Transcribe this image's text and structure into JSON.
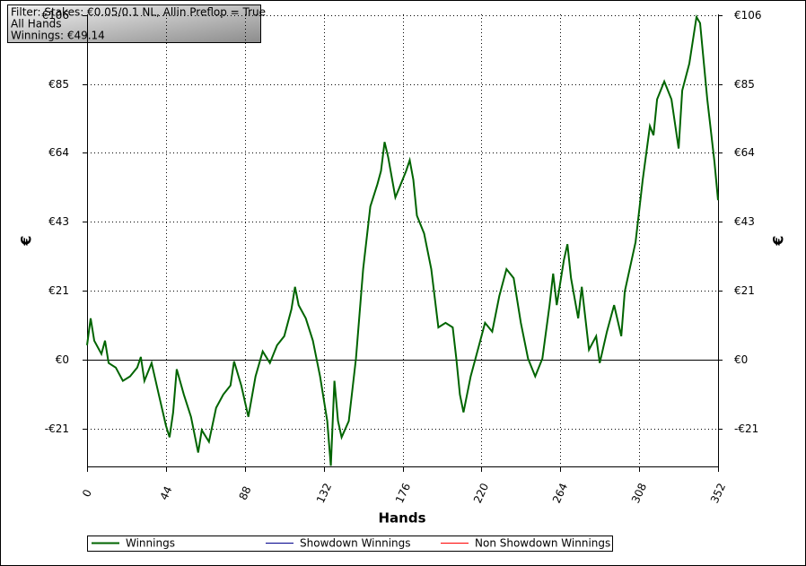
{
  "chart_data": {
    "type": "line",
    "info": [
      "Filter: Stakes: €0.05/0.1 NL, Allin Preflop = True",
      "All Hands",
      "Winnings: €49.14"
    ],
    "xlabel": "Hands",
    "ylabel": "€",
    "y2label": "€",
    "xlim": [
      0,
      352
    ],
    "xticks": [
      0,
      44,
      88,
      132,
      176,
      220,
      264,
      308,
      352
    ],
    "ylim": [
      -33,
      106.5
    ],
    "yticks": [
      {
        "value": -21.25,
        "label": "-€21"
      },
      {
        "value": 0,
        "label": "€0"
      },
      {
        "value": 21.25,
        "label": "€21"
      },
      {
        "value": 42.5,
        "label": "€43"
      },
      {
        "value": 63.75,
        "label": "€64"
      },
      {
        "value": 85,
        "label": "€85"
      },
      {
        "value": 106.25,
        "label": "€106"
      }
    ],
    "grid": true,
    "series": [
      {
        "name": "Winnings",
        "color": "#006400",
        "x": [
          0,
          2,
          4,
          8,
          10,
          12,
          16,
          20,
          24,
          28,
          30,
          32,
          36,
          40,
          44,
          46,
          48,
          50,
          54,
          58,
          62,
          64,
          68,
          72,
          76,
          80,
          82,
          86,
          90,
          94,
          98,
          102,
          106,
          110,
          114,
          116,
          118,
          122,
          126,
          130,
          134,
          136,
          138,
          140,
          142,
          146,
          150,
          154,
          158,
          162,
          164,
          166,
          168,
          172,
          174,
          178,
          180,
          182,
          184,
          188,
          192,
          196,
          200,
          204,
          206,
          208,
          210,
          214,
          218,
          222,
          226,
          230,
          234,
          238,
          242,
          246,
          250,
          254,
          258,
          260,
          262,
          266,
          268,
          270,
          274,
          276,
          280,
          284,
          286,
          290,
          294,
          298,
          300,
          306,
          310,
          314,
          316,
          318,
          322,
          326,
          330,
          332,
          336,
          340,
          342,
          346,
          350,
          352
        ],
        "values": [
          4.4,
          12.7,
          5.8,
          1.7,
          5.8,
          -1.1,
          -2.5,
          -6.6,
          -5.2,
          -2.5,
          0.8,
          -6.6,
          -1.1,
          -10.8,
          -20.4,
          -24,
          -16.3,
          -3,
          -10.8,
          -17.7,
          -28.7,
          -21.8,
          -25.4,
          -14.9,
          -10.8,
          -8,
          -0.6,
          -8,
          -17.7,
          -5.2,
          2.5,
          -1.1,
          4.4,
          7.2,
          15.5,
          22.4,
          16.8,
          12.7,
          5.8,
          -5.2,
          -19,
          -32.8,
          -6.6,
          -19,
          -24,
          -19,
          0.3,
          27.9,
          47.2,
          54.1,
          58.2,
          67.1,
          62.4,
          50,
          52.7,
          58.2,
          61.5,
          55.5,
          44.4,
          38.9,
          27.9,
          9.9,
          11.3,
          9.9,
          0.3,
          -10.8,
          -16.3,
          -5.2,
          3,
          11.3,
          8.6,
          19.6,
          27.9,
          25.1,
          11.3,
          0.3,
          -5.2,
          0.3,
          16.8,
          26.5,
          16.8,
          30.6,
          35.6,
          25.1,
          12.7,
          22.4,
          3,
          7.2,
          -1.1,
          8.6,
          16.8,
          7.2,
          21,
          36.2,
          55.5,
          72,
          69.2,
          80.3,
          85.8,
          80.3,
          65.1,
          83,
          91.3,
          105.7,
          103.8,
          80.3,
          61,
          49.14
        ]
      }
    ],
    "legend_items": [
      {
        "name": "Winnings",
        "color": "#006400"
      },
      {
        "name": "Showdown Winnings",
        "color": "#00008b"
      },
      {
        "name": "Non Showdown Winnings",
        "color": "#ff0000"
      }
    ]
  }
}
